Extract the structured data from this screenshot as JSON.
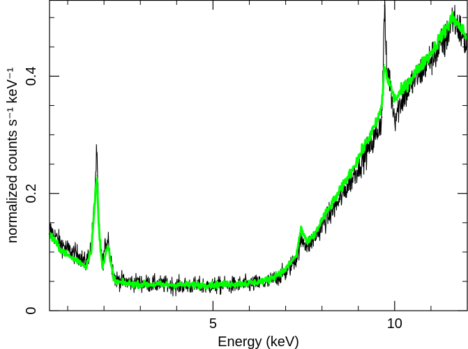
{
  "chart_data": {
    "type": "line",
    "xlabel": "Energy (keV)",
    "ylabel": "normalized counts s⁻¹ keV⁻¹",
    "xlim": [
      0.5,
      12.0
    ],
    "ylim": [
      0.0,
      0.53
    ],
    "x_ticks": [
      {
        "value": 5,
        "label": "5"
      },
      {
        "value": 10,
        "label": "10"
      }
    ],
    "y_ticks": [
      {
        "value": 0,
        "label": "0"
      },
      {
        "value": 0.2,
        "label": "0.2"
      },
      {
        "value": 0.4,
        "label": "0.4"
      }
    ],
    "x_minor_ticks": [
      1,
      2,
      3,
      4,
      6,
      7,
      8,
      9,
      11
    ],
    "y_minor_ticks": [
      0.05,
      0.1,
      0.15,
      0.25,
      0.3,
      0.35,
      0.45,
      0.5
    ],
    "grid": false,
    "colors": {
      "data": "#000000",
      "model": "#00ff00"
    },
    "series": [
      {
        "kind": "data",
        "noise": 0.022,
        "x": [
          0.5,
          0.8,
          1.1,
          1.3,
          1.5,
          1.65,
          1.72,
          1.8,
          1.86,
          1.95,
          2.05,
          2.12,
          2.18,
          2.3,
          2.5,
          3.0,
          4.0,
          5.0,
          6.0,
          6.5,
          7.0,
          7.3,
          7.42,
          7.5,
          7.6,
          7.8,
          8.0,
          8.5,
          9.0,
          9.5,
          9.65,
          9.72,
          9.78,
          9.85,
          9.95,
          10.0,
          10.2,
          10.5,
          11.0,
          11.4,
          11.6,
          11.72,
          11.85,
          12.0
        ],
        "y": [
          0.14,
          0.115,
          0.1,
          0.095,
          0.08,
          0.11,
          0.17,
          0.27,
          0.15,
          0.08,
          0.115,
          0.125,
          0.09,
          0.055,
          0.05,
          0.047,
          0.043,
          0.042,
          0.045,
          0.048,
          0.065,
          0.09,
          0.12,
          0.12,
          0.11,
          0.125,
          0.145,
          0.19,
          0.245,
          0.3,
          0.33,
          0.52,
          0.41,
          0.4,
          0.35,
          0.33,
          0.36,
          0.39,
          0.43,
          0.46,
          0.5,
          0.49,
          0.47,
          0.45
        ]
      },
      {
        "kind": "model",
        "noise": 0.008,
        "x": [
          0.5,
          0.8,
          1.1,
          1.3,
          1.5,
          1.65,
          1.72,
          1.8,
          1.86,
          1.95,
          2.05,
          2.12,
          2.18,
          2.3,
          2.5,
          3.0,
          4.0,
          5.0,
          6.0,
          6.5,
          7.0,
          7.3,
          7.42,
          7.5,
          7.6,
          7.8,
          8.0,
          8.5,
          9.0,
          9.5,
          9.65,
          9.72,
          9.78,
          9.85,
          9.95,
          10.0,
          10.2,
          10.5,
          11.0,
          11.4,
          11.6,
          11.72,
          11.85,
          12.0
        ],
        "y": [
          0.13,
          0.105,
          0.09,
          0.085,
          0.075,
          0.105,
          0.16,
          0.23,
          0.14,
          0.075,
          0.1,
          0.11,
          0.08,
          0.05,
          0.047,
          0.045,
          0.044,
          0.044,
          0.047,
          0.052,
          0.07,
          0.095,
          0.14,
          0.13,
          0.115,
          0.13,
          0.155,
          0.205,
          0.26,
          0.32,
          0.35,
          0.42,
          0.4,
          0.39,
          0.37,
          0.36,
          0.375,
          0.4,
          0.44,
          0.48,
          0.5,
          0.49,
          0.48,
          0.465
        ]
      }
    ]
  }
}
